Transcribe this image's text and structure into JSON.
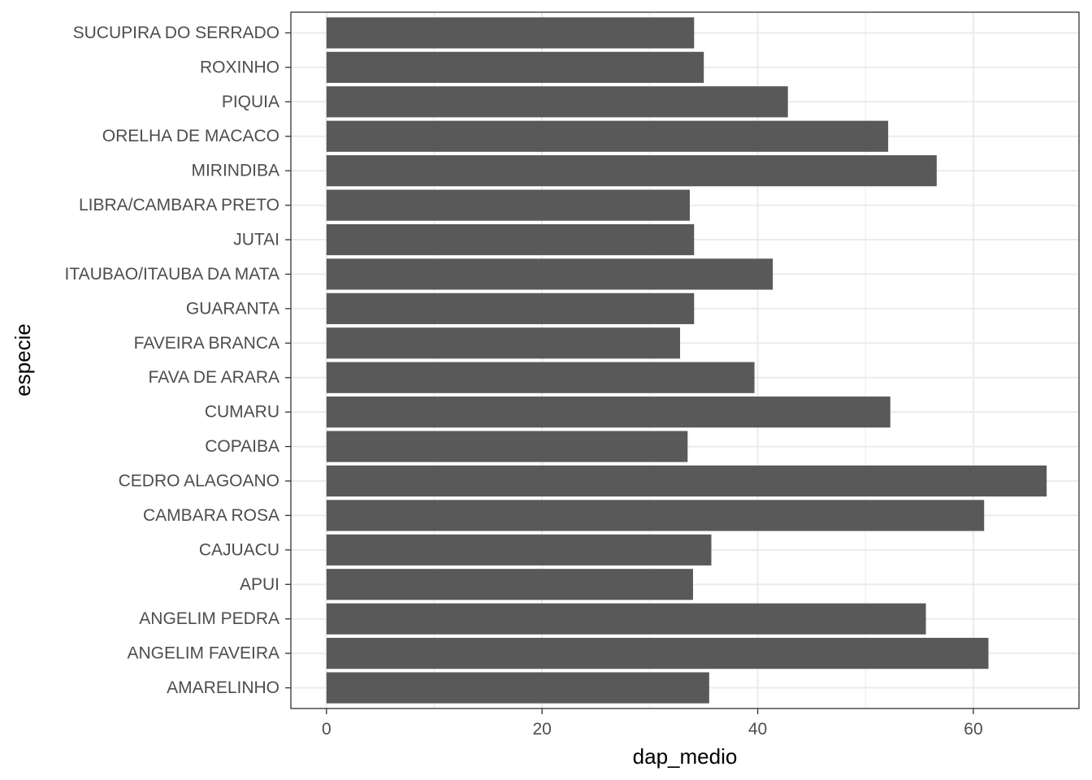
{
  "chart_data": {
    "type": "bar",
    "orientation": "horizontal",
    "xlabel": "dap_medio",
    "ylabel": "especie",
    "xlim": [
      -3.3,
      69.8
    ],
    "xticks": [
      0,
      20,
      40,
      60
    ],
    "grid": true,
    "bar_color": "#595959",
    "categories": [
      "AMARELINHO",
      "ANGELIM FAVEIRA",
      "ANGELIM PEDRA",
      "APUI",
      "CAJUACU",
      "CAMBARA ROSA",
      "CEDRO ALAGOANO",
      "COPAIBA",
      "CUMARU",
      "FAVA DE ARARA",
      "FAVEIRA BRANCA",
      "GUARANTA",
      "ITAUBAO/ITAUBA DA MATA",
      "JUTAI",
      "LIBRA/CAMBARA PRETO",
      "MIRINDIBA",
      "ORELHA DE MACACO",
      "PIQUIA",
      "ROXINHO",
      "SUCUPIRA DO SERRADO"
    ],
    "values": [
      35.5,
      61.4,
      55.6,
      34.0,
      35.7,
      61.0,
      66.8,
      33.5,
      52.3,
      39.7,
      32.8,
      34.1,
      41.4,
      34.1,
      33.7,
      56.6,
      52.1,
      42.8,
      35.0,
      34.1
    ]
  }
}
